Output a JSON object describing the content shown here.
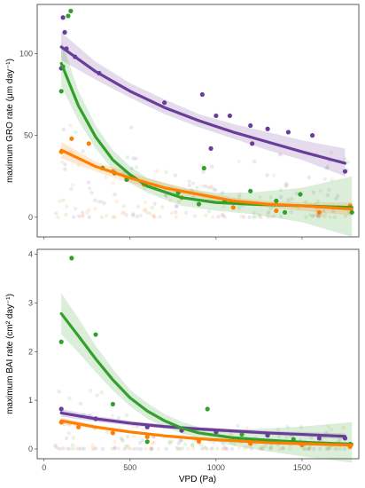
{
  "xlabel": "VPD (Pa)",
  "x_ticks": [
    0,
    500,
    1000,
    1500
  ],
  "colors": {
    "purple": "#6a3d9a",
    "green": "#33a02c",
    "orange": "#ff7f00"
  },
  "chart_data": [
    {
      "type": "scatter",
      "ylabel": "maximum GRO rate (μm day⁻¹)",
      "xlim": [
        -40,
        1830
      ],
      "ylim": [
        -12,
        130
      ],
      "y_ticks": [
        0,
        50,
        100
      ],
      "grid": false,
      "series": [
        {
          "color": "#6a3d9a",
          "points": [
            [
              110,
              122
            ],
            [
              120,
              113
            ],
            [
              130,
              103
            ],
            [
              100,
              91
            ],
            [
              180,
              98
            ],
            [
              320,
              88
            ],
            [
              700,
              70
            ],
            [
              920,
              75
            ],
            [
              970,
              42
            ],
            [
              1000,
              62
            ],
            [
              1080,
              62
            ],
            [
              1200,
              56
            ],
            [
              1210,
              45
            ],
            [
              1300,
              54
            ],
            [
              1420,
              52
            ],
            [
              1560,
              50
            ],
            [
              1750,
              28
            ]
          ],
          "fit": [
            [
              100,
              104
            ],
            [
              300,
              89
            ],
            [
              500,
              77
            ],
            [
              700,
              67
            ],
            [
              900,
              59
            ],
            [
              1100,
              52
            ],
            [
              1300,
              46
            ],
            [
              1500,
              40
            ],
            [
              1750,
              33
            ]
          ],
          "band": [
            [
              100,
              96,
              113
            ],
            [
              300,
              84,
              95
            ],
            [
              500,
              73,
              82
            ],
            [
              700,
              63,
              72
            ],
            [
              900,
              55,
              63
            ],
            [
              1100,
              48,
              57
            ],
            [
              1300,
              41,
              52
            ],
            [
              1500,
              35,
              47
            ],
            [
              1750,
              25,
              42
            ]
          ]
        },
        {
          "color": "#33a02c",
          "points": [
            [
              100,
              77
            ],
            [
              110,
              92
            ],
            [
              140,
              123
            ],
            [
              155,
              126
            ],
            [
              340,
              30
            ],
            [
              410,
              27
            ],
            [
              480,
              23
            ],
            [
              780,
              15
            ],
            [
              900,
              8
            ],
            [
              930,
              30
            ],
            [
              1050,
              10
            ],
            [
              1200,
              16
            ],
            [
              1350,
              10
            ],
            [
              1400,
              3
            ],
            [
              1490,
              14
            ],
            [
              1790,
              3
            ]
          ],
          "fit": [
            [
              100,
              94
            ],
            [
              200,
              68
            ],
            [
              300,
              49
            ],
            [
              400,
              35
            ],
            [
              500,
              26
            ],
            [
              600,
              19
            ],
            [
              800,
              12
            ],
            [
              1000,
              9
            ],
            [
              1200,
              8
            ],
            [
              1500,
              7
            ],
            [
              1790,
              6
            ]
          ],
          "band": [
            [
              100,
              80,
              108
            ],
            [
              200,
              59,
              77
            ],
            [
              300,
              42,
              56
            ],
            [
              400,
              29,
              41
            ],
            [
              500,
              21,
              31
            ],
            [
              600,
              15,
              24
            ],
            [
              800,
              7,
              18
            ],
            [
              1000,
              4,
              15
            ],
            [
              1200,
              2,
              15
            ],
            [
              1500,
              -3,
              18
            ],
            [
              1790,
              -12,
              25
            ]
          ]
        },
        {
          "color": "#ff7f00",
          "points": [
            [
              100,
              40
            ],
            [
              160,
              48
            ],
            [
              260,
              45
            ],
            [
              400,
              28
            ],
            [
              580,
              20
            ],
            [
              800,
              12
            ],
            [
              1100,
              6
            ],
            [
              1350,
              4
            ],
            [
              1600,
              3
            ],
            [
              1780,
              7
            ]
          ],
          "fit": [
            [
              100,
              41
            ],
            [
              300,
              31
            ],
            [
              500,
              24
            ],
            [
              700,
              18
            ],
            [
              900,
              14
            ],
            [
              1100,
              10
            ],
            [
              1300,
              8
            ],
            [
              1500,
              7
            ],
            [
              1790,
              5
            ]
          ],
          "band": [
            [
              100,
              36,
              46
            ],
            [
              300,
              28,
              34
            ],
            [
              500,
              21,
              27
            ],
            [
              700,
              16,
              21
            ],
            [
              900,
              12,
              16
            ],
            [
              1100,
              8,
              12
            ],
            [
              1300,
              6,
              10
            ],
            [
              1500,
              4,
              9
            ],
            [
              1790,
              1,
              9
            ]
          ]
        }
      ]
    },
    {
      "type": "scatter",
      "ylabel": "maximum BAI rate (cm² day⁻¹)",
      "xlim": [
        -40,
        1830
      ],
      "ylim": [
        -0.2,
        4.1
      ],
      "y_ticks": [
        0,
        1,
        2,
        3,
        4
      ],
      "grid": false,
      "series": [
        {
          "color": "#6a3d9a",
          "points": [
            [
              100,
              0.82
            ],
            [
              300,
              0.62
            ],
            [
              600,
              0.45
            ],
            [
              800,
              0.38
            ],
            [
              1000,
              0.35
            ],
            [
              1300,
              0.28
            ],
            [
              1600,
              0.22
            ],
            [
              1750,
              0.22
            ]
          ],
          "fit": [
            [
              100,
              0.74
            ],
            [
              300,
              0.62
            ],
            [
              500,
              0.53
            ],
            [
              700,
              0.46
            ],
            [
              900,
              0.41
            ],
            [
              1100,
              0.37
            ],
            [
              1300,
              0.33
            ],
            [
              1500,
              0.3
            ],
            [
              1750,
              0.26
            ]
          ],
          "band": [
            [
              100,
              0.66,
              0.82
            ],
            [
              300,
              0.56,
              0.68
            ],
            [
              500,
              0.48,
              0.58
            ],
            [
              700,
              0.42,
              0.5
            ],
            [
              900,
              0.37,
              0.45
            ],
            [
              1100,
              0.33,
              0.41
            ],
            [
              1300,
              0.29,
              0.37
            ],
            [
              1500,
              0.26,
              0.35
            ],
            [
              1750,
              0.2,
              0.32
            ]
          ]
        },
        {
          "color": "#33a02c",
          "points": [
            [
              100,
              2.2
            ],
            [
              160,
              3.92
            ],
            [
              300,
              2.35
            ],
            [
              400,
              0.92
            ],
            [
              600,
              0.15
            ],
            [
              950,
              0.82
            ],
            [
              1150,
              0.3
            ],
            [
              1450,
              0.2
            ],
            [
              1780,
              0.1
            ]
          ],
          "fit": [
            [
              100,
              2.78
            ],
            [
              200,
              2.32
            ],
            [
              300,
              1.85
            ],
            [
              400,
              1.42
            ],
            [
              500,
              1.05
            ],
            [
              600,
              0.78
            ],
            [
              700,
              0.58
            ],
            [
              800,
              0.43
            ],
            [
              900,
              0.33
            ],
            [
              1100,
              0.23
            ],
            [
              1300,
              0.18
            ],
            [
              1500,
              0.14
            ],
            [
              1790,
              0.1
            ]
          ],
          "band": [
            [
              100,
              2.35,
              3.2
            ],
            [
              200,
              1.98,
              2.68
            ],
            [
              300,
              1.58,
              2.12
            ],
            [
              400,
              1.2,
              1.64
            ],
            [
              500,
              0.88,
              1.22
            ],
            [
              600,
              0.62,
              0.94
            ],
            [
              700,
              0.45,
              0.72
            ],
            [
              800,
              0.32,
              0.56
            ],
            [
              900,
              0.22,
              0.45
            ],
            [
              1100,
              0.07,
              0.4
            ],
            [
              1300,
              -0.05,
              0.42
            ],
            [
              1500,
              -0.15,
              0.46
            ],
            [
              1790,
              -0.28,
              0.55
            ]
          ]
        },
        {
          "color": "#ff7f00",
          "points": [
            [
              100,
              0.55
            ],
            [
              200,
              0.45
            ],
            [
              400,
              0.33
            ],
            [
              600,
              0.25
            ],
            [
              900,
              0.16
            ],
            [
              1200,
              0.11
            ],
            [
              1500,
              0.08
            ],
            [
              1780,
              0.05
            ]
          ],
          "fit": [
            [
              100,
              0.58
            ],
            [
              300,
              0.45
            ],
            [
              500,
              0.35
            ],
            [
              700,
              0.27
            ],
            [
              900,
              0.21
            ],
            [
              1100,
              0.17
            ],
            [
              1300,
              0.13
            ],
            [
              1500,
              0.11
            ],
            [
              1790,
              0.08
            ]
          ],
          "band": [
            [
              100,
              0.52,
              0.64
            ],
            [
              300,
              0.41,
              0.49
            ],
            [
              500,
              0.32,
              0.38
            ],
            [
              700,
              0.24,
              0.3
            ],
            [
              900,
              0.18,
              0.24
            ],
            [
              1100,
              0.14,
              0.2
            ],
            [
              1300,
              0.1,
              0.16
            ],
            [
              1500,
              0.07,
              0.15
            ],
            [
              1790,
              0.03,
              0.13
            ]
          ]
        }
      ]
    }
  ]
}
